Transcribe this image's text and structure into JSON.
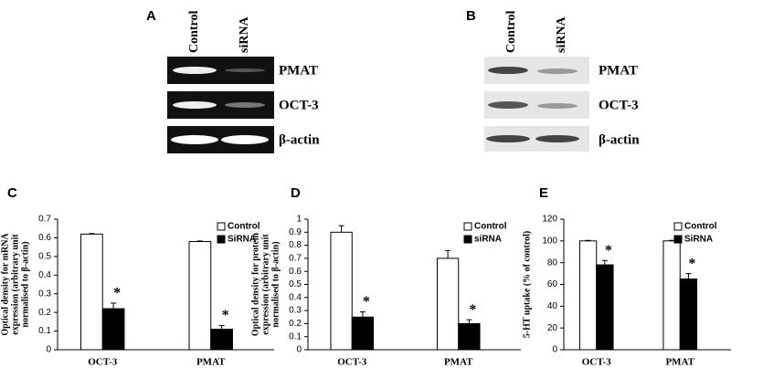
{
  "gels": [
    {
      "panel_label": "A",
      "lanes": [
        "Control",
        "siRNA"
      ],
      "bands": [
        "PMAT",
        "OCT-3",
        "β-actin"
      ]
    },
    {
      "panel_label": "B",
      "lanes": [
        "Control",
        "siRNA"
      ],
      "bands": [
        "PMAT",
        "OCT-3",
        "β-actin"
      ]
    }
  ],
  "chart_data": [
    {
      "type": "bar",
      "panel_label": "C",
      "ylabel": [
        "Optical density for mRNA",
        "expression (arbitrary unit",
        "normalised to β-actin)"
      ],
      "categories": [
        "OCT-3",
        "PMAT"
      ],
      "series": [
        {
          "name": "Control",
          "color": "#ffffff",
          "values": [
            0.62,
            0.58
          ],
          "errors": [
            0.003,
            0.003
          ]
        },
        {
          "name": "SiRNA",
          "color": "#000000",
          "values": [
            0.22,
            0.11
          ],
          "errors": [
            0.03,
            0.02
          ],
          "annotations": [
            "*",
            "*"
          ]
        }
      ],
      "ylim": [
        0,
        0.7
      ],
      "yticks": [
        0,
        0.1,
        0.2,
        0.3,
        0.4,
        0.5,
        0.6,
        0.7
      ],
      "legend": "top-right"
    },
    {
      "type": "bar",
      "panel_label": "D",
      "ylabel": [
        "Optical density for protein",
        "expression (arbitrary unit",
        "normalised to β-actin)"
      ],
      "categories": [
        "OCT-3",
        "PMAT"
      ],
      "series": [
        {
          "name": "Control",
          "color": "#ffffff",
          "values": [
            0.9,
            0.7
          ],
          "errors": [
            0.05,
            0.06
          ]
        },
        {
          "name": "siRNA",
          "color": "#000000",
          "values": [
            0.25,
            0.2
          ],
          "errors": [
            0.04,
            0.03
          ],
          "annotations": [
            "*",
            "*"
          ]
        }
      ],
      "ylim": [
        0,
        1
      ],
      "yticks": [
        0,
        0.1,
        0.2,
        0.3,
        0.4,
        0.5,
        0.6,
        0.7,
        0.8,
        0.9,
        1
      ],
      "legend": "top-right"
    },
    {
      "type": "bar",
      "panel_label": "E",
      "ylabel": [
        "5-HT uptake (% of control)"
      ],
      "categories": [
        "OCT-3",
        "PMAT"
      ],
      "series": [
        {
          "name": "Control",
          "color": "#ffffff",
          "values": [
            100,
            100
          ],
          "errors": [
            0.5,
            0.5
          ]
        },
        {
          "name": "SiRNA",
          "color": "#000000",
          "values": [
            78,
            65
          ],
          "errors": [
            4,
            5
          ],
          "annotations": [
            "*",
            "*"
          ]
        }
      ],
      "ylim": [
        0,
        120
      ],
      "yticks": [
        0,
        20,
        40,
        60,
        80,
        100,
        120
      ],
      "legend": "top-right"
    }
  ]
}
